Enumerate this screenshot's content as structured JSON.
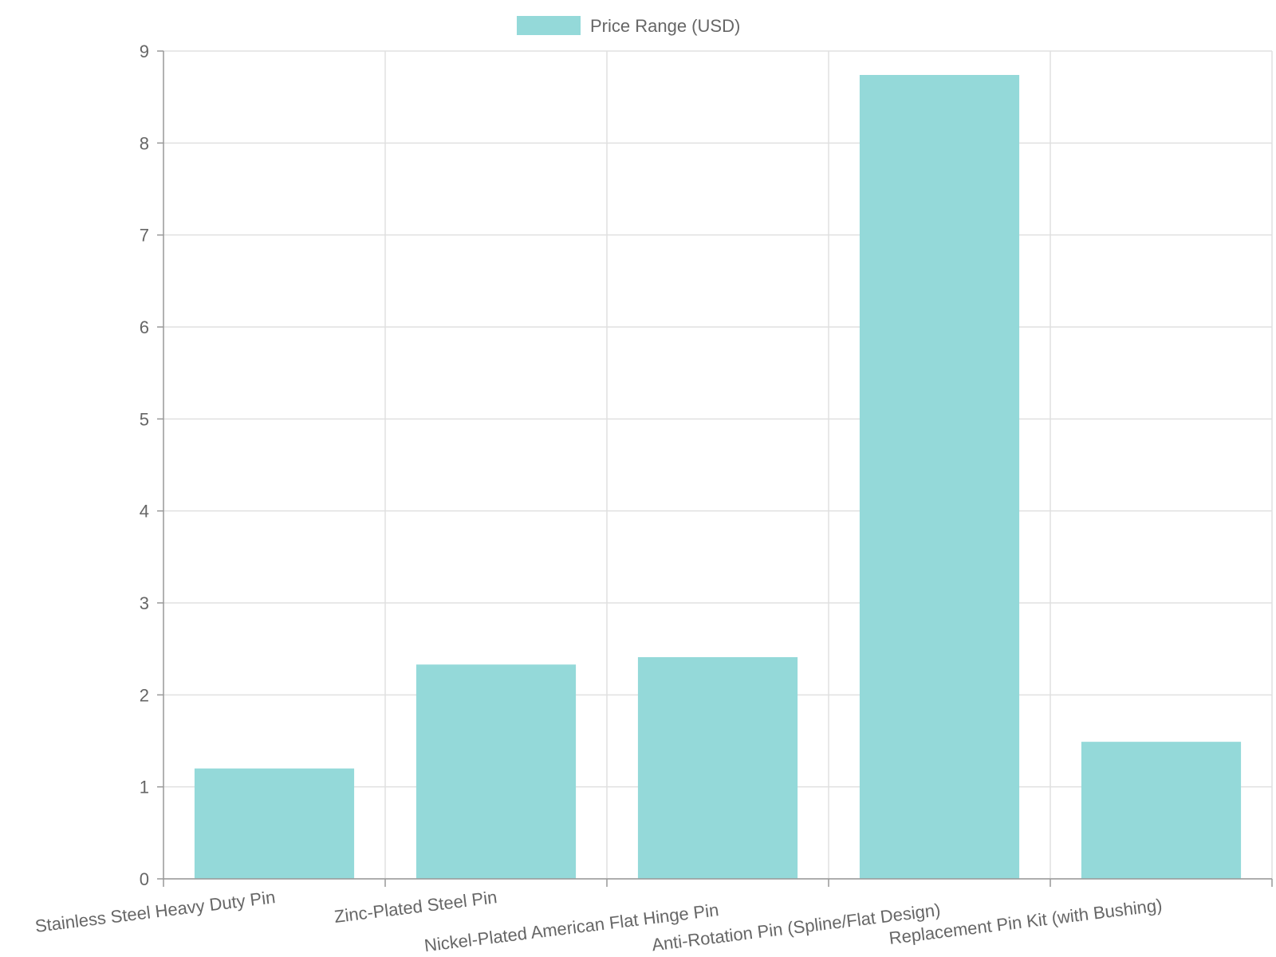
{
  "chart_data": {
    "type": "bar",
    "categories": [
      "Stainless Steel Heavy Duty Pin",
      "Zinc-Plated Steel Pin",
      "Nickel-Plated American Flat Hinge Pin",
      "Anti-Rotation Pin (Spline/Flat Design)",
      "Replacement Pin Kit (with Bushing)"
    ],
    "series": [
      {
        "name": "Price Range (USD)",
        "values": [
          1.2,
          2.33,
          2.41,
          8.74,
          1.49
        ]
      }
    ],
    "ylim": [
      0,
      9
    ],
    "yticks": [
      0,
      1,
      2,
      3,
      4,
      5,
      6,
      7,
      8,
      9
    ],
    "grid": true,
    "legend_position": "top-center",
    "colors": {
      "bar_fill": "#94d9d9",
      "grid": "#e0e0e0",
      "axis": "#999999",
      "text": "#666666"
    }
  }
}
